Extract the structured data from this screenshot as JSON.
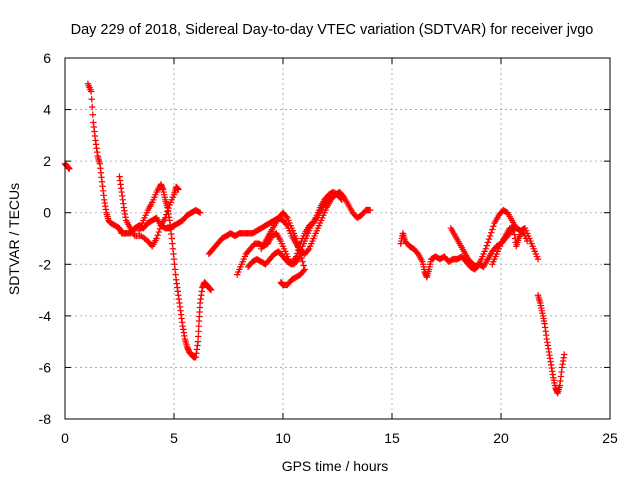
{
  "chart_data": {
    "type": "scatter",
    "title": "Day 229 of 2018, Sidereal Day-to-day VTEC variation (SDTVAR) for receiver jvgo",
    "xlabel": "GPS time / hours",
    "ylabel": "SDTVAR / TECUs",
    "xlim": [
      0,
      25
    ],
    "ylim": [
      -8,
      6
    ],
    "x_ticks": [
      "0",
      "5",
      "10",
      "15",
      "20",
      "25"
    ],
    "y_ticks": [
      "6",
      "4",
      "2",
      "0",
      "-2",
      "-4",
      "-6",
      "-8"
    ],
    "grid": true,
    "marker": "+",
    "color": "#ff0000",
    "series": [
      {
        "name": "seg-a",
        "points": [
          [
            0.0,
            1.9
          ],
          [
            0.1,
            1.8
          ],
          [
            0.2,
            1.7
          ]
        ]
      },
      {
        "name": "seg-b",
        "points": [
          [
            1.05,
            5.0
          ],
          [
            1.2,
            4.7
          ],
          [
            1.3,
            3.5
          ],
          [
            1.4,
            2.8
          ],
          [
            1.5,
            2.2
          ],
          [
            1.6,
            1.9
          ],
          [
            1.7,
            1.2
          ],
          [
            1.8,
            0.5
          ],
          [
            1.9,
            0.0
          ],
          [
            2.0,
            -0.3
          ],
          [
            2.1,
            -0.4
          ],
          [
            2.3,
            -0.5
          ],
          [
            2.5,
            -0.6
          ],
          [
            2.6,
            -0.8
          ],
          [
            2.8,
            -0.8
          ],
          [
            3.0,
            -0.8
          ],
          [
            3.2,
            -0.6
          ],
          [
            3.4,
            -0.5
          ],
          [
            3.6,
            -0.6
          ],
          [
            3.8,
            -0.4
          ],
          [
            4.0,
            -0.3
          ],
          [
            4.2,
            -0.2
          ],
          [
            4.4,
            -0.5
          ],
          [
            4.6,
            -0.6
          ],
          [
            4.8,
            -0.6
          ],
          [
            5.0,
            -0.5
          ],
          [
            5.2,
            -0.4
          ],
          [
            5.4,
            -0.3
          ],
          [
            5.6,
            -0.1
          ],
          [
            5.8,
            0.0
          ],
          [
            6.0,
            0.1
          ],
          [
            6.2,
            0.0
          ]
        ]
      },
      {
        "name": "seg-c",
        "points": [
          [
            2.5,
            1.4
          ],
          [
            2.6,
            0.8
          ],
          [
            2.7,
            0.2
          ],
          [
            2.8,
            -0.3
          ],
          [
            3.0,
            -0.6
          ],
          [
            3.2,
            -0.9
          ],
          [
            3.5,
            -0.9
          ],
          [
            3.8,
            -1.1
          ],
          [
            4.0,
            -1.3
          ],
          [
            4.2,
            -1.0
          ],
          [
            4.4,
            -0.5
          ],
          [
            4.6,
            -0.2
          ],
          [
            4.8,
            0.3
          ],
          [
            5.0,
            0.7
          ],
          [
            5.1,
            1.0
          ],
          [
            5.2,
            0.9
          ]
        ]
      },
      {
        "name": "seg-d",
        "points": [
          [
            3.4,
            -0.7
          ],
          [
            3.6,
            -0.3
          ],
          [
            3.8,
            0.1
          ],
          [
            4.0,
            0.4
          ],
          [
            4.2,
            0.8
          ],
          [
            4.4,
            1.1
          ],
          [
            4.5,
            0.9
          ],
          [
            4.6,
            0.5
          ],
          [
            4.7,
            0.2
          ],
          [
            4.8,
            -0.3
          ],
          [
            4.9,
            -1.0
          ],
          [
            5.0,
            -1.8
          ],
          [
            5.1,
            -2.6
          ],
          [
            5.2,
            -3.2
          ],
          [
            5.3,
            -3.8
          ],
          [
            5.4,
            -4.4
          ],
          [
            5.5,
            -4.9
          ],
          [
            5.6,
            -5.2
          ],
          [
            5.7,
            -5.4
          ],
          [
            5.8,
            -5.5
          ],
          [
            5.9,
            -5.6
          ],
          [
            6.0,
            -5.6
          ],
          [
            6.1,
            -5.0
          ],
          [
            6.15,
            -4.2
          ],
          [
            6.2,
            -3.5
          ],
          [
            6.3,
            -2.9
          ],
          [
            6.4,
            -2.7
          ],
          [
            6.5,
            -2.8
          ],
          [
            6.6,
            -2.9
          ],
          [
            6.7,
            -3.0
          ]
        ]
      },
      {
        "name": "seg-e",
        "points": [
          [
            6.6,
            -1.6
          ],
          [
            6.8,
            -1.4
          ],
          [
            7.0,
            -1.2
          ],
          [
            7.2,
            -1.0
          ],
          [
            7.4,
            -0.9
          ],
          [
            7.6,
            -0.8
          ],
          [
            7.8,
            -0.9
          ],
          [
            8.0,
            -0.8
          ],
          [
            8.2,
            -0.8
          ],
          [
            8.4,
            -0.8
          ],
          [
            8.6,
            -0.8
          ],
          [
            8.8,
            -0.7
          ],
          [
            9.0,
            -0.6
          ],
          [
            9.2,
            -0.5
          ],
          [
            9.4,
            -0.4
          ],
          [
            9.6,
            -0.3
          ],
          [
            9.8,
            -0.2
          ],
          [
            10.0,
            -0.3
          ],
          [
            10.2,
            -0.5
          ],
          [
            10.4,
            -0.9
          ],
          [
            10.6,
            -1.2
          ],
          [
            10.8,
            -1.5
          ],
          [
            11.0,
            -1.6
          ],
          [
            11.2,
            -1.4
          ],
          [
            11.4,
            -1.0
          ],
          [
            11.6,
            -0.6
          ],
          [
            11.8,
            -0.2
          ],
          [
            12.0,
            0.2
          ],
          [
            12.2,
            0.5
          ],
          [
            12.4,
            0.7
          ],
          [
            12.6,
            0.8
          ],
          [
            12.8,
            0.6
          ],
          [
            13.0,
            0.3
          ],
          [
            13.2,
            0.0
          ],
          [
            13.4,
            -0.2
          ],
          [
            13.6,
            -0.1
          ],
          [
            13.8,
            0.1
          ],
          [
            14.0,
            0.1
          ]
        ]
      },
      {
        "name": "seg-f",
        "points": [
          [
            7.9,
            -2.4
          ],
          [
            8.1,
            -2.0
          ],
          [
            8.3,
            -1.6
          ],
          [
            8.5,
            -1.4
          ],
          [
            8.7,
            -1.2
          ],
          [
            8.9,
            -1.2
          ],
          [
            9.1,
            -1.3
          ],
          [
            9.3,
            -1.2
          ],
          [
            9.5,
            -0.9
          ],
          [
            9.7,
            -0.8
          ],
          [
            9.9,
            -1.1
          ],
          [
            10.1,
            -1.5
          ],
          [
            10.3,
            -1.9
          ],
          [
            10.5,
            -2.0
          ],
          [
            10.7,
            -1.8
          ],
          [
            10.9,
            -1.3
          ],
          [
            11.1,
            -0.9
          ],
          [
            11.3,
            -0.5
          ],
          [
            11.5,
            -0.2
          ],
          [
            11.7,
            0.2
          ],
          [
            11.9,
            0.5
          ],
          [
            12.1,
            0.7
          ],
          [
            12.3,
            0.8
          ],
          [
            12.5,
            0.7
          ],
          [
            12.7,
            0.5
          ]
        ]
      },
      {
        "name": "seg-g",
        "points": [
          [
            8.4,
            -2.1
          ],
          [
            8.6,
            -1.9
          ],
          [
            8.8,
            -1.8
          ],
          [
            9.0,
            -1.9
          ],
          [
            9.2,
            -2.0
          ],
          [
            9.4,
            -1.8
          ],
          [
            9.6,
            -1.6
          ],
          [
            9.8,
            -1.5
          ],
          [
            10.0,
            -1.7
          ],
          [
            10.2,
            -1.9
          ],
          [
            10.4,
            -2.0
          ],
          [
            10.6,
            -1.7
          ],
          [
            10.8,
            -1.2
          ],
          [
            11.0,
            -0.8
          ],
          [
            11.2,
            -0.5
          ],
          [
            11.4,
            -0.4
          ],
          [
            11.6,
            -0.1
          ],
          [
            11.8,
            0.2
          ],
          [
            12.0,
            0.4
          ],
          [
            12.2,
            0.6
          ]
        ]
      },
      {
        "name": "seg-h",
        "points": [
          [
            9.0,
            -1.4
          ],
          [
            9.2,
            -1.1
          ],
          [
            9.4,
            -0.8
          ],
          [
            9.6,
            -0.5
          ],
          [
            9.8,
            -0.2
          ],
          [
            10.0,
            0.0
          ],
          [
            10.2,
            -0.2
          ],
          [
            10.4,
            -0.6
          ],
          [
            10.6,
            -1.0
          ],
          [
            10.8,
            -1.6
          ],
          [
            11.0,
            -2.2
          ],
          [
            10.8,
            -2.4
          ],
          [
            10.6,
            -2.5
          ],
          [
            10.4,
            -2.6
          ],
          [
            10.2,
            -2.8
          ],
          [
            10.0,
            -2.8
          ],
          [
            9.9,
            -2.7
          ]
        ]
      },
      {
        "name": "seg-i",
        "points": [
          [
            15.4,
            -1.2
          ],
          [
            15.5,
            -0.8
          ],
          [
            15.6,
            -1.1
          ],
          [
            15.8,
            -1.3
          ],
          [
            16.0,
            -1.4
          ],
          [
            16.2,
            -1.6
          ],
          [
            16.4,
            -1.9
          ],
          [
            16.5,
            -2.3
          ],
          [
            16.6,
            -2.5
          ],
          [
            16.7,
            -2.2
          ],
          [
            16.8,
            -1.8
          ],
          [
            17.0,
            -1.7
          ],
          [
            17.2,
            -1.8
          ],
          [
            17.4,
            -1.7
          ],
          [
            17.6,
            -1.9
          ],
          [
            17.8,
            -1.8
          ],
          [
            18.0,
            -1.8
          ],
          [
            18.2,
            -1.7
          ],
          [
            18.4,
            -1.9
          ],
          [
            18.6,
            -2.1
          ],
          [
            18.8,
            -2.2
          ],
          [
            19.0,
            -2.0
          ],
          [
            19.2,
            -2.1
          ],
          [
            19.4,
            -1.8
          ],
          [
            19.6,
            -1.5
          ],
          [
            19.8,
            -1.3
          ],
          [
            20.0,
            -1.2
          ],
          [
            20.2,
            -1.0
          ],
          [
            20.4,
            -0.8
          ],
          [
            20.6,
            -0.5
          ]
        ]
      },
      {
        "name": "seg-j",
        "points": [
          [
            17.7,
            -0.6
          ],
          [
            17.9,
            -0.9
          ],
          [
            18.1,
            -1.2
          ],
          [
            18.3,
            -1.5
          ],
          [
            18.5,
            -1.8
          ],
          [
            18.7,
            -2.0
          ],
          [
            18.9,
            -2.1
          ],
          [
            19.1,
            -1.8
          ],
          [
            19.3,
            -1.4
          ],
          [
            19.5,
            -0.9
          ],
          [
            19.7,
            -0.4
          ],
          [
            19.9,
            -0.1
          ],
          [
            20.1,
            0.1
          ],
          [
            20.3,
            0.0
          ],
          [
            20.5,
            -0.3
          ],
          [
            20.7,
            -0.6
          ],
          [
            20.9,
            -0.7
          ],
          [
            21.1,
            -0.6
          ],
          [
            21.3,
            -1.0
          ],
          [
            21.5,
            -1.4
          ],
          [
            21.7,
            -1.8
          ]
        ]
      },
      {
        "name": "seg-k",
        "points": [
          [
            19.6,
            -2.0
          ],
          [
            19.8,
            -1.6
          ],
          [
            20.0,
            -1.2
          ],
          [
            20.2,
            -0.9
          ],
          [
            20.4,
            -0.6
          ],
          [
            20.6,
            -0.7
          ],
          [
            20.7,
            -1.3
          ],
          [
            20.8,
            -1.0
          ],
          [
            21.0,
            -0.7
          ],
          [
            21.2,
            -1.1
          ]
        ]
      },
      {
        "name": "seg-l",
        "points": [
          [
            21.7,
            -3.2
          ],
          [
            21.8,
            -3.5
          ],
          [
            21.9,
            -3.9
          ],
          [
            22.0,
            -4.3
          ],
          [
            22.1,
            -4.9
          ],
          [
            22.2,
            -5.4
          ],
          [
            22.3,
            -5.9
          ],
          [
            22.4,
            -6.4
          ],
          [
            22.5,
            -6.8
          ],
          [
            22.6,
            -7.0
          ],
          [
            22.7,
            -6.7
          ],
          [
            22.8,
            -6.0
          ],
          [
            22.9,
            -5.5
          ]
        ]
      }
    ]
  }
}
